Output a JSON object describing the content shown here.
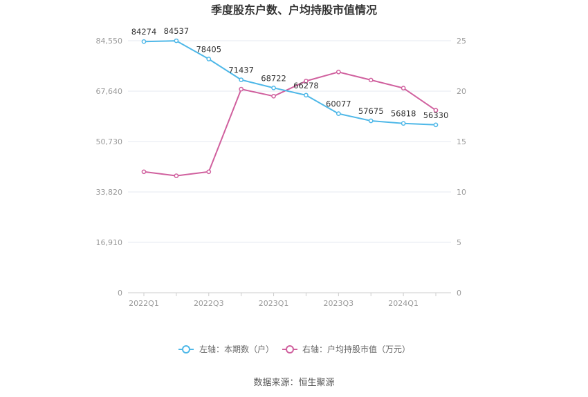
{
  "chart_data": {
    "type": "line",
    "title": "季度股东户数、户均持股市值情况",
    "categories": [
      "2022Q1",
      "2022Q2",
      "2022Q3",
      "2022Q4",
      "2023Q1",
      "2023Q2",
      "2023Q3",
      "2023Q4",
      "2024Q1",
      "2024Q2"
    ],
    "x_tick_labels": [
      "2022Q1",
      "2022Q3",
      "2023Q1",
      "2023Q3",
      "2024Q1"
    ],
    "left_axis": {
      "ticks": [
        "0",
        "16,910",
        "33,820",
        "50,730",
        "67,640",
        "84,550"
      ],
      "ylim": [
        0,
        84550
      ]
    },
    "right_axis": {
      "ticks": [
        "0",
        "5",
        "10",
        "15",
        "20",
        "25"
      ],
      "ylim": [
        0,
        25
      ]
    },
    "series": [
      {
        "name": "左轴：本期数（户）",
        "axis": "left",
        "color": "#4fb8e8",
        "values": [
          84274,
          84537,
          78405,
          71437,
          68722,
          66278,
          60077,
          57675,
          56818,
          56330
        ],
        "labels": [
          "84274",
          "84537",
          "78405",
          "71437",
          "68722",
          "66278",
          "60077",
          "57675",
          "56818",
          "56330"
        ]
      },
      {
        "name": "右轴：户均持股市值（万元）",
        "axis": "right",
        "color": "#d0609e",
        "values": [
          12.0,
          11.6,
          12.0,
          20.2,
          19.5,
          21.0,
          21.9,
          21.1,
          20.3,
          18.1
        ]
      }
    ],
    "grid": true,
    "legend_position": "bottom"
  },
  "source": "数据来源：恒生聚源"
}
